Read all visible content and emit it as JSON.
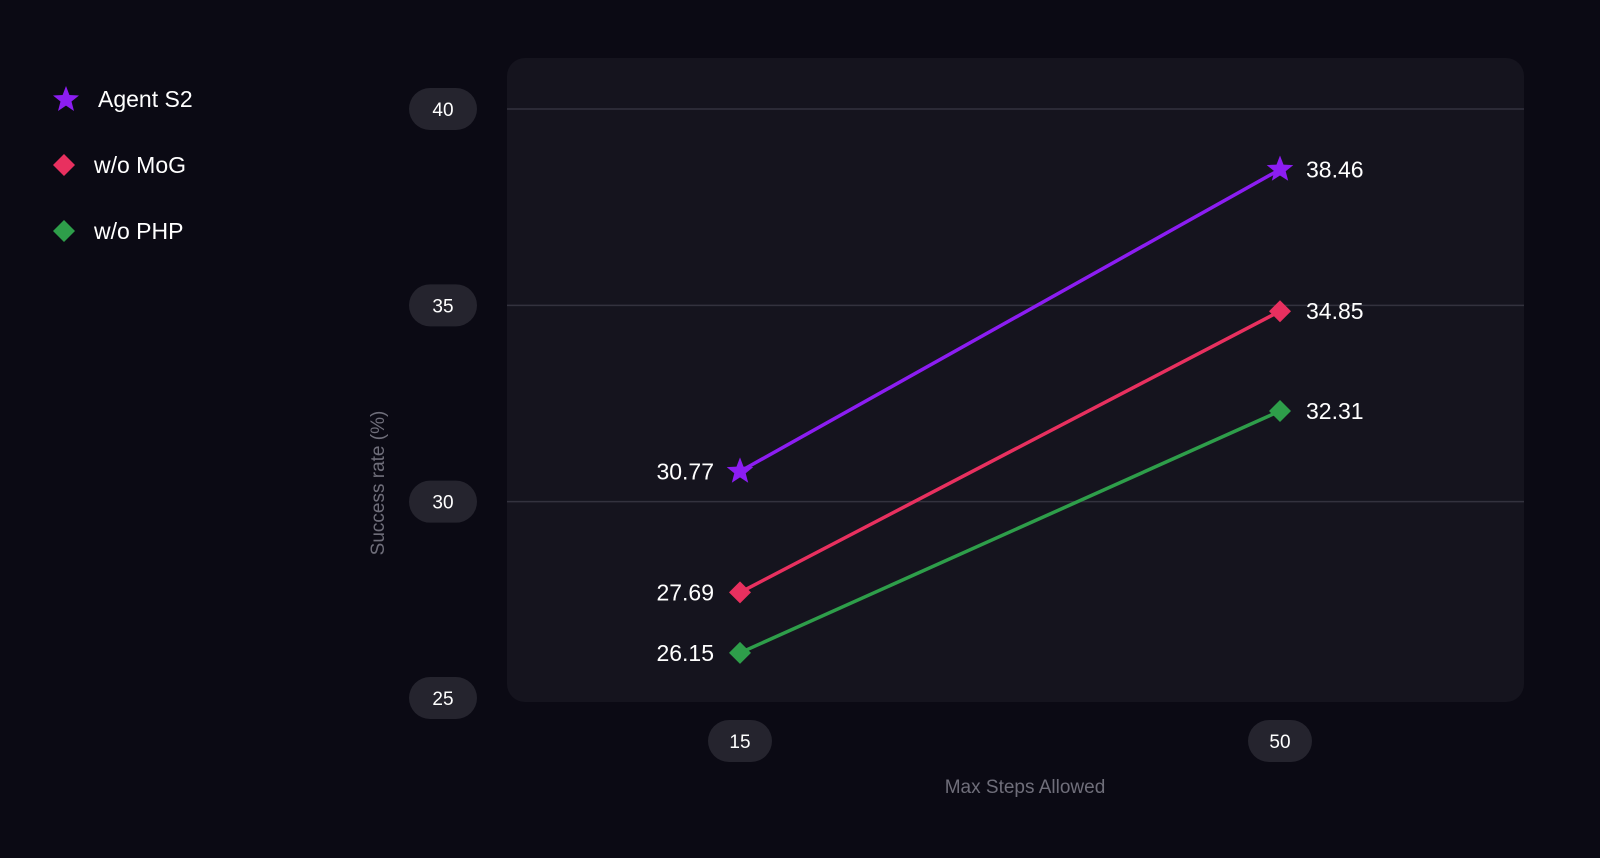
{
  "chart_data": {
    "type": "line",
    "xlabel": "Max Steps Allowed",
    "ylabel": "Success rate (%)",
    "x": [
      15,
      50
    ],
    "x_tick_labels": [
      "15",
      "50"
    ],
    "ylim": [
      25,
      40
    ],
    "y_ticks": [
      "25",
      "30",
      "35",
      "40"
    ],
    "grid": "horizontal",
    "legend_position": "top-left",
    "series": [
      {
        "name": "Agent S2",
        "values": [
          30.77,
          38.46
        ],
        "labels": [
          "30.77",
          "38.46"
        ],
        "color": "#8c1df2",
        "marker": "star-icon"
      },
      {
        "name": "w/o MoG",
        "values": [
          27.69,
          34.85
        ],
        "labels": [
          "27.69",
          "34.85"
        ],
        "color": "#e8305f",
        "marker": "diamond-icon"
      },
      {
        "name": "w/o PHP",
        "values": [
          26.15,
          32.31
        ],
        "labels": [
          "26.15",
          "32.31"
        ],
        "color": "#2e9e4a",
        "marker": "diamond-icon"
      }
    ]
  }
}
